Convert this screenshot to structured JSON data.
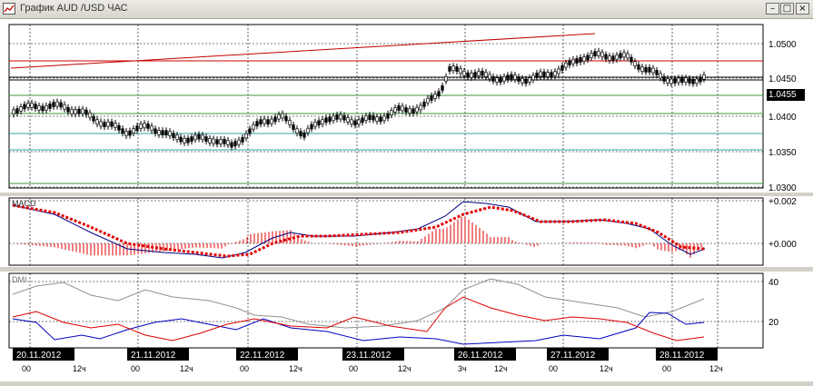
{
  "window": {
    "title": "График AUD /USD  ЧАС",
    "min_icon": "minimize-icon",
    "max_icon": "maximize-icon",
    "close_icon": "close-icon"
  },
  "price_pane": {
    "y_ticks": [
      "1.0500",
      "1.0450",
      "1.0400",
      "1.0350",
      "1.0300"
    ],
    "last_price": "1.0455"
  },
  "macd_pane": {
    "label": "MACD",
    "y_ticks": [
      "+0.002",
      "+0.000"
    ]
  },
  "dmi_pane": {
    "label": "DMI",
    "y_ticks": [
      "40",
      "20"
    ]
  },
  "time_axis": {
    "dates": [
      "20.11.2012",
      "21.11.2012",
      "22.11.2012",
      "23.11.2012",
      "26.11.2012",
      "27.11.2012",
      "28.11.2012"
    ],
    "hours": [
      "00",
      "12ч",
      "00",
      "12ч",
      "00",
      "12ч",
      "00",
      "12ч",
      "3ч",
      "12ч",
      "00",
      "12ч",
      "00",
      "12ч"
    ]
  },
  "colors": {
    "trendline": "#c00000",
    "horizontal_red": "#d00000",
    "horizontal_green": "#3a9a3a",
    "horizontal_teal": "#2aa6a6",
    "macd_line": "#000080",
    "macd_signal": "#e00000",
    "dmi_plus": "#0000c0",
    "dmi_minus": "#e00000",
    "adx": "#909090"
  }
}
